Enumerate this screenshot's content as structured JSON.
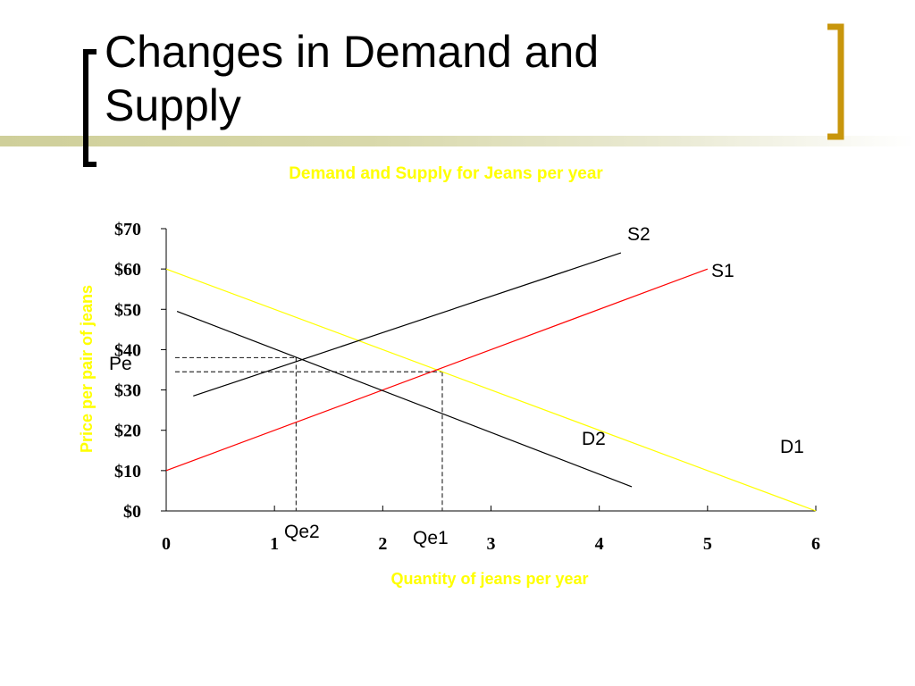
{
  "slide": {
    "title": "Changes in Demand and\nSupply",
    "bracket_color_left": "#000000",
    "bracket_color_right": "#c8960c"
  },
  "chart_data": {
    "type": "line",
    "title": "Demand and Supply for Jeans per year",
    "xlabel": "Quantity of jeans per year",
    "ylabel": "Price per pair of jeans",
    "xlim": [
      0,
      6
    ],
    "ylim": [
      0,
      70
    ],
    "x_ticks": [
      "0",
      "1",
      "2",
      "3",
      "4",
      "5",
      "6"
    ],
    "y_ticks": [
      "$0",
      "$10",
      "$20",
      "$30",
      "$40",
      "$50",
      "$60",
      "$70"
    ],
    "series": [
      {
        "name": "D1",
        "color": "#ffff00",
        "points": [
          [
            0,
            60
          ],
          [
            6,
            0
          ]
        ]
      },
      {
        "name": "S1",
        "color": "#ff0000",
        "points": [
          [
            0,
            10
          ],
          [
            5,
            60
          ]
        ]
      },
      {
        "name": "D2",
        "color": "#000000",
        "points": [
          [
            0.1,
            49.5
          ],
          [
            4.3,
            6
          ]
        ]
      },
      {
        "name": "S2",
        "color": "#000000",
        "points": [
          [
            0.25,
            28.5
          ],
          [
            4.2,
            64
          ]
        ]
      }
    ],
    "guides": [
      {
        "name": "Qe2",
        "x": 1.2,
        "y": 38
      },
      {
        "name": "Qe1",
        "x": 2.55,
        "y": 34.5
      }
    ],
    "annotations": {
      "pe": "Pe",
      "qe1": "Qe1",
      "qe2": "Qe2",
      "s1": "S1",
      "s2": "S2",
      "d1": "D1",
      "d2": "D2"
    },
    "colors": {
      "title": "#ffff00",
      "axis_labels": "#ffff00"
    }
  }
}
